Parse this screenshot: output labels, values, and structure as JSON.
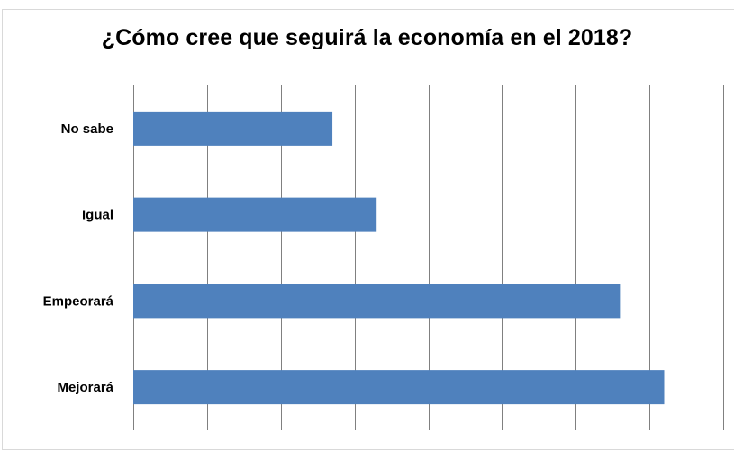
{
  "chart_data": {
    "type": "bar",
    "orientation": "horizontal",
    "title": "¿Cómo cree que seguirá la economía en el 2018?",
    "categories": [
      "No sabe",
      "Igual",
      "Empeorará",
      "Mejorará"
    ],
    "values": [
      27,
      33,
      66,
      72
    ],
    "xlim": [
      0,
      80
    ],
    "grid": true,
    "gridlines": "vertical",
    "legend": "none",
    "bar_color": "#4f81bd",
    "grid_color": "#808080"
  }
}
